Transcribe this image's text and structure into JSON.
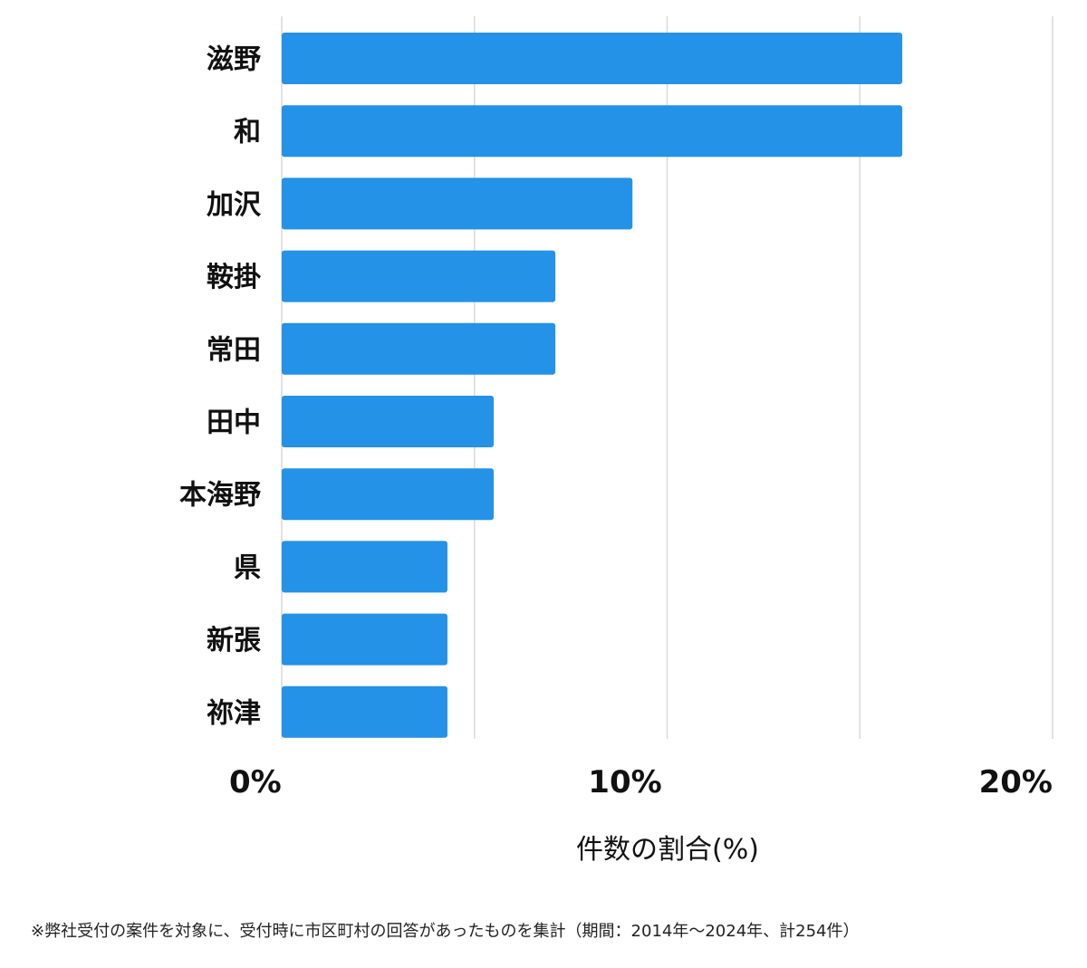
{
  "chart_data": {
    "type": "bar",
    "orientation": "horizontal",
    "categories": [
      "滋野",
      "和",
      "加沢",
      "鞍掛",
      "常田",
      "田中",
      "本海野",
      "県",
      "新張",
      "祢津"
    ],
    "values": [
      16.1,
      16.1,
      9.1,
      7.1,
      7.1,
      5.5,
      5.5,
      4.3,
      4.3,
      4.3
    ],
    "xlim": [
      0,
      20
    ],
    "xticks": [
      0,
      10,
      20
    ],
    "xtick_labels": [
      "0%",
      "10%",
      "20%"
    ],
    "minor_gridlines": [
      0,
      5,
      10,
      15,
      20
    ],
    "grid": true,
    "title": "",
    "xlabel": "件数の割合(%)",
    "ylabel": "",
    "bar_color": "#2492e6",
    "grid_color": "#d9d9d9"
  },
  "footnote": "※弊社受付の案件を対象に、受付時に市区町村の回答があったものを集計（期間：2014年～2024年、計254件）"
}
